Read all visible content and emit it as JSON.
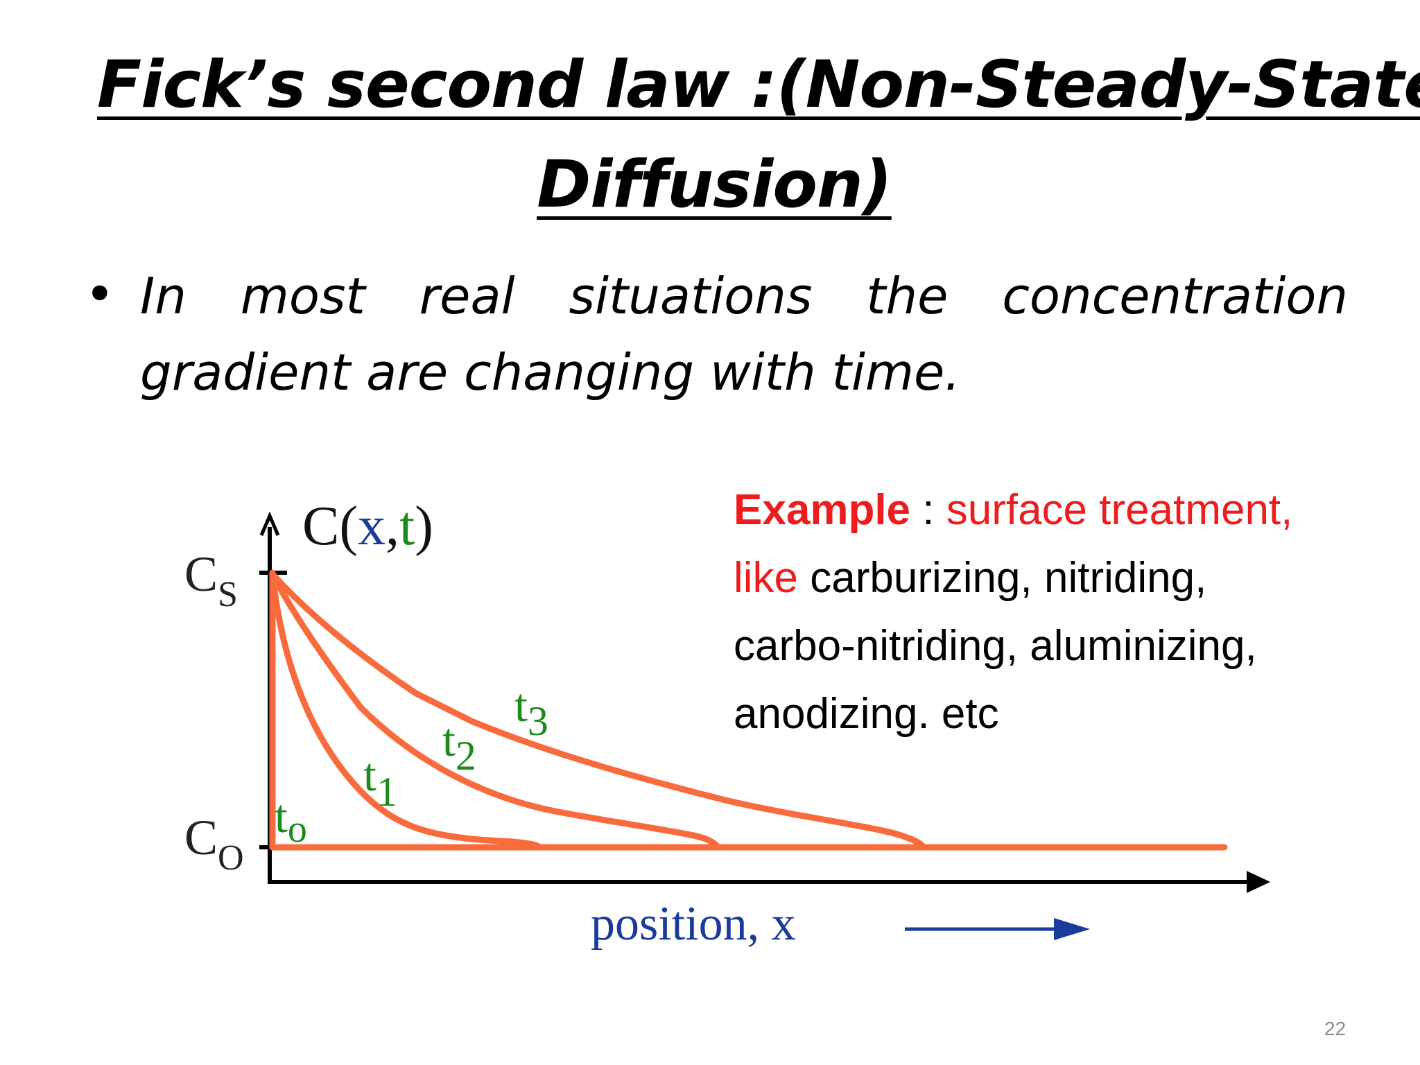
{
  "slide": {
    "title_line_1": "Fick’s second law :(Non-Steady-State",
    "title_line_2": "Diffusion)",
    "bullet_line_1": "In most real situations the concentration",
    "bullet_line_2": "gradient are changing with time.",
    "page_number": "22"
  },
  "diagram": {
    "y_axis_label_c": "C(",
    "y_axis_label_x": "x",
    "y_axis_label_comma": ",",
    "y_axis_label_t": "t",
    "y_axis_label_close": ")",
    "cs_label": "C",
    "cs_sub": "S",
    "co_label": "C",
    "co_sub": "O",
    "x_axis_label": "position, x",
    "curve_labels": {
      "t0": "t",
      "t0_sub": "o",
      "t1": "t",
      "t1_sub": "1",
      "t2": "t",
      "t2_sub": "2",
      "t3": "t",
      "t3_sub": "3"
    },
    "colors": {
      "curves": "#f96b3c",
      "time_labels": "#1c8a1c",
      "position_label": "#1a3a9c",
      "axes": "#000000"
    }
  },
  "example": {
    "heading": "Example",
    "separator": " : ",
    "line_1_rest": "surface treatment,",
    "line_2_red": "like",
    "line_2_rest": " carburizing, nitriding,",
    "line_3": "carbo-nitriding, aluminizing,",
    "line_4": "anodizing. etc",
    "colors": {
      "highlight": "#ee1c1c",
      "text": "#000000"
    }
  }
}
